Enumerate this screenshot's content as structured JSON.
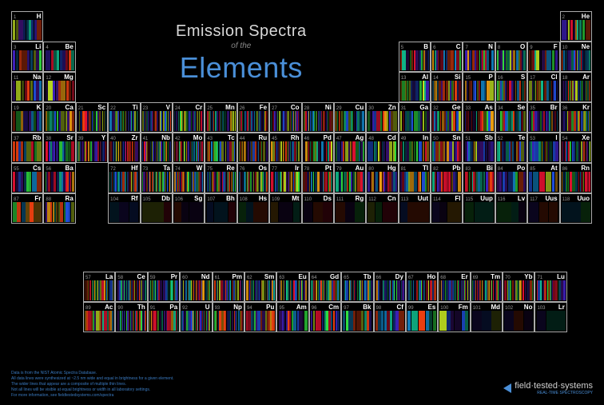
{
  "title": {
    "line1": "Emission Spectra",
    "of": "of the",
    "line2": "Elements",
    "line1_color": "#d8d8d8",
    "line2_color": "#4a8fd8"
  },
  "background_color": "#000000",
  "cell": {
    "border_color": "#aaaaaa",
    "width": 40.4,
    "height": 38,
    "num_color": "#999999",
    "num_fontsize": 6,
    "sym_color": "#ffffff",
    "sym_fontsize": 8
  },
  "spectrum_palette": [
    "#3a1070",
    "#4020c0",
    "#2050e0",
    "#1080c0",
    "#10c090",
    "#30e040",
    "#c0e020",
    "#f0a010",
    "#f04010",
    "#e01030"
  ],
  "layout": {
    "main_cols": 18,
    "main_rows": 7,
    "fblock_cols": 15,
    "fblock_rows": 2
  },
  "elements": [
    {
      "n": 1,
      "s": "H",
      "r": 0,
      "c": 0,
      "d": 3
    },
    {
      "n": 2,
      "s": "He",
      "r": 0,
      "c": 17,
      "d": 4
    },
    {
      "n": 3,
      "s": "Li",
      "r": 1,
      "c": 0,
      "d": 3
    },
    {
      "n": 4,
      "s": "Be",
      "r": 1,
      "c": 1,
      "d": 3
    },
    {
      "n": 5,
      "s": "B",
      "r": 1,
      "c": 12,
      "d": 4
    },
    {
      "n": 6,
      "s": "C",
      "r": 1,
      "c": 13,
      "d": 4
    },
    {
      "n": 7,
      "s": "N",
      "r": 1,
      "c": 14,
      "d": 5
    },
    {
      "n": 8,
      "s": "O",
      "r": 1,
      "c": 15,
      "d": 5
    },
    {
      "n": 9,
      "s": "F",
      "r": 1,
      "c": 16,
      "d": 4
    },
    {
      "n": 10,
      "s": "Ne",
      "r": 1,
      "c": 17,
      "d": 6
    },
    {
      "n": 11,
      "s": "Na",
      "r": 2,
      "c": 0,
      "d": 3
    },
    {
      "n": 12,
      "s": "Mg",
      "r": 2,
      "c": 1,
      "d": 3
    },
    {
      "n": 13,
      "s": "Al",
      "r": 2,
      "c": 12,
      "d": 4
    },
    {
      "n": 14,
      "s": "Si",
      "r": 2,
      "c": 13,
      "d": 5
    },
    {
      "n": 15,
      "s": "P",
      "r": 2,
      "c": 14,
      "d": 4
    },
    {
      "n": 16,
      "s": "S",
      "r": 2,
      "c": 15,
      "d": 5
    },
    {
      "n": 17,
      "s": "Cl",
      "r": 2,
      "c": 16,
      "d": 5
    },
    {
      "n": 18,
      "s": "Ar",
      "r": 2,
      "c": 17,
      "d": 6
    },
    {
      "n": 19,
      "s": "K",
      "r": 3,
      "c": 0,
      "d": 3
    },
    {
      "n": 20,
      "s": "Ca",
      "r": 3,
      "c": 1,
      "d": 4
    },
    {
      "n": 21,
      "s": "Sc",
      "r": 3,
      "c": 2,
      "d": 6
    },
    {
      "n": 22,
      "s": "Ti",
      "r": 3,
      "c": 3,
      "d": 7
    },
    {
      "n": 23,
      "s": "V",
      "r": 3,
      "c": 4,
      "d": 8
    },
    {
      "n": 24,
      "s": "Cr",
      "r": 3,
      "c": 5,
      "d": 7
    },
    {
      "n": 25,
      "s": "Mn",
      "r": 3,
      "c": 6,
      "d": 7
    },
    {
      "n": 26,
      "s": "Fe",
      "r": 3,
      "c": 7,
      "d": 8
    },
    {
      "n": 27,
      "s": "Co",
      "r": 3,
      "c": 8,
      "d": 7
    },
    {
      "n": 28,
      "s": "Ni",
      "r": 3,
      "c": 9,
      "d": 7
    },
    {
      "n": 29,
      "s": "Cu",
      "r": 3,
      "c": 10,
      "d": 5
    },
    {
      "n": 30,
      "s": "Zn",
      "r": 3,
      "c": 11,
      "d": 4
    },
    {
      "n": 31,
      "s": "Ga",
      "r": 3,
      "c": 12,
      "d": 4
    },
    {
      "n": 32,
      "s": "Ge",
      "r": 3,
      "c": 13,
      "d": 5
    },
    {
      "n": 33,
      "s": "As",
      "r": 3,
      "c": 14,
      "d": 5
    },
    {
      "n": 34,
      "s": "Se",
      "r": 3,
      "c": 15,
      "d": 5
    },
    {
      "n": 35,
      "s": "Br",
      "r": 3,
      "c": 16,
      "d": 5
    },
    {
      "n": 36,
      "s": "Kr",
      "r": 3,
      "c": 17,
      "d": 6
    },
    {
      "n": 37,
      "s": "Rb",
      "r": 4,
      "c": 0,
      "d": 3
    },
    {
      "n": 38,
      "s": "Sr",
      "r": 4,
      "c": 1,
      "d": 4
    },
    {
      "n": 39,
      "s": "Y",
      "r": 4,
      "c": 2,
      "d": 6
    },
    {
      "n": 40,
      "s": "Zr",
      "r": 4,
      "c": 3,
      "d": 7
    },
    {
      "n": 41,
      "s": "Nb",
      "r": 4,
      "c": 4,
      "d": 8
    },
    {
      "n": 42,
      "s": "Mo",
      "r": 4,
      "c": 5,
      "d": 8
    },
    {
      "n": 43,
      "s": "Tc",
      "r": 4,
      "c": 6,
      "d": 6
    },
    {
      "n": 44,
      "s": "Ru",
      "r": 4,
      "c": 7,
      "d": 7
    },
    {
      "n": 45,
      "s": "Rh",
      "r": 4,
      "c": 8,
      "d": 6
    },
    {
      "n": 46,
      "s": "Pd",
      "r": 4,
      "c": 9,
      "d": 5
    },
    {
      "n": 47,
      "s": "Ag",
      "r": 4,
      "c": 10,
      "d": 4
    },
    {
      "n": 48,
      "s": "Cd",
      "r": 4,
      "c": 11,
      "d": 4
    },
    {
      "n": 49,
      "s": "In",
      "r": 4,
      "c": 12,
      "d": 4
    },
    {
      "n": 50,
      "s": "Sn",
      "r": 4,
      "c": 13,
      "d": 5
    },
    {
      "n": 51,
      "s": "Sb",
      "r": 4,
      "c": 14,
      "d": 5
    },
    {
      "n": 52,
      "s": "Te",
      "r": 4,
      "c": 15,
      "d": 5
    },
    {
      "n": 53,
      "s": "I",
      "r": 4,
      "c": 16,
      "d": 5
    },
    {
      "n": 54,
      "s": "Xe",
      "r": 4,
      "c": 17,
      "d": 7
    },
    {
      "n": 55,
      "s": "Cs",
      "r": 5,
      "c": 0,
      "d": 3
    },
    {
      "n": 56,
      "s": "Ba",
      "r": 5,
      "c": 1,
      "d": 5
    },
    {
      "n": 72,
      "s": "Hf",
      "r": 5,
      "c": 3,
      "d": 7
    },
    {
      "n": 73,
      "s": "Ta",
      "r": 5,
      "c": 4,
      "d": 8
    },
    {
      "n": 74,
      "s": "W",
      "r": 5,
      "c": 5,
      "d": 8
    },
    {
      "n": 75,
      "s": "Re",
      "r": 5,
      "c": 6,
      "d": 7
    },
    {
      "n": 76,
      "s": "Os",
      "r": 5,
      "c": 7,
      "d": 7
    },
    {
      "n": 77,
      "s": "Ir",
      "r": 5,
      "c": 8,
      "d": 6
    },
    {
      "n": 78,
      "s": "Pt",
      "r": 5,
      "c": 9,
      "d": 5
    },
    {
      "n": 79,
      "s": "Au",
      "r": 5,
      "c": 10,
      "d": 4
    },
    {
      "n": 80,
      "s": "Hg",
      "r": 5,
      "c": 11,
      "d": 5
    },
    {
      "n": 81,
      "s": "Tl",
      "r": 5,
      "c": 12,
      "d": 4
    },
    {
      "n": 82,
      "s": "Pb",
      "r": 5,
      "c": 13,
      "d": 4
    },
    {
      "n": 83,
      "s": "Bi",
      "r": 5,
      "c": 14,
      "d": 5
    },
    {
      "n": 84,
      "s": "Po",
      "r": 5,
      "c": 15,
      "d": 3
    },
    {
      "n": 85,
      "s": "At",
      "r": 5,
      "c": 16,
      "d": 2
    },
    {
      "n": 86,
      "s": "Rn",
      "r": 5,
      "c": 17,
      "d": 5
    },
    {
      "n": 87,
      "s": "Fr",
      "r": 6,
      "c": 0,
      "d": 2
    },
    {
      "n": 88,
      "s": "Ra",
      "r": 6,
      "c": 1,
      "d": 4
    },
    {
      "n": 104,
      "s": "Rf",
      "r": 6,
      "c": 3,
      "d": 1
    },
    {
      "n": 105,
      "s": "Db",
      "r": 6,
      "c": 4,
      "d": 1
    },
    {
      "n": 106,
      "s": "Sg",
      "r": 6,
      "c": 5,
      "d": 1
    },
    {
      "n": 107,
      "s": "Bh",
      "r": 6,
      "c": 6,
      "d": 1
    },
    {
      "n": 108,
      "s": "Hs",
      "r": 6,
      "c": 7,
      "d": 1
    },
    {
      "n": 109,
      "s": "Mt",
      "r": 6,
      "c": 8,
      "d": 1
    },
    {
      "n": 110,
      "s": "Ds",
      "r": 6,
      "c": 9,
      "d": 1
    },
    {
      "n": 111,
      "s": "Rg",
      "r": 6,
      "c": 10,
      "d": 1
    },
    {
      "n": 112,
      "s": "Cn",
      "r": 6,
      "c": 11,
      "d": 1
    },
    {
      "n": 113,
      "s": "Uut",
      "r": 6,
      "c": 12,
      "d": 1
    },
    {
      "n": 114,
      "s": "Fl",
      "r": 6,
      "c": 13,
      "d": 1
    },
    {
      "n": 115,
      "s": "Uup",
      "r": 6,
      "c": 14,
      "d": 1
    },
    {
      "n": 116,
      "s": "Lv",
      "r": 6,
      "c": 15,
      "d": 1
    },
    {
      "n": 117,
      "s": "Uus",
      "r": 6,
      "c": 16,
      "d": 1
    },
    {
      "n": 118,
      "s": "Uuo",
      "r": 6,
      "c": 17,
      "d": 1
    }
  ],
  "fblock": [
    {
      "n": 57,
      "s": "La",
      "r": 0,
      "c": 0,
      "d": 7
    },
    {
      "n": 58,
      "s": "Ce",
      "r": 0,
      "c": 1,
      "d": 8
    },
    {
      "n": 59,
      "s": "Pr",
      "r": 0,
      "c": 2,
      "d": 8
    },
    {
      "n": 60,
      "s": "Nd",
      "r": 0,
      "c": 3,
      "d": 8
    },
    {
      "n": 61,
      "s": "Pm",
      "r": 0,
      "c": 4,
      "d": 6
    },
    {
      "n": 62,
      "s": "Sm",
      "r": 0,
      "c": 5,
      "d": 8
    },
    {
      "n": 63,
      "s": "Eu",
      "r": 0,
      "c": 6,
      "d": 7
    },
    {
      "n": 64,
      "s": "Gd",
      "r": 0,
      "c": 7,
      "d": 8
    },
    {
      "n": 65,
      "s": "Tb",
      "r": 0,
      "c": 8,
      "d": 8
    },
    {
      "n": 66,
      "s": "Dy",
      "r": 0,
      "c": 9,
      "d": 8
    },
    {
      "n": 67,
      "s": "Ho",
      "r": 0,
      "c": 10,
      "d": 8
    },
    {
      "n": 68,
      "s": "Er",
      "r": 0,
      "c": 11,
      "d": 8
    },
    {
      "n": 69,
      "s": "Tm",
      "r": 0,
      "c": 12,
      "d": 7
    },
    {
      "n": 70,
      "s": "Yb",
      "r": 0,
      "c": 13,
      "d": 6
    },
    {
      "n": 71,
      "s": "Lu",
      "r": 0,
      "c": 14,
      "d": 6
    },
    {
      "n": 89,
      "s": "Ac",
      "r": 1,
      "c": 0,
      "d": 5
    },
    {
      "n": 90,
      "s": "Th",
      "r": 1,
      "c": 1,
      "d": 7
    },
    {
      "n": 91,
      "s": "Pa",
      "r": 1,
      "c": 2,
      "d": 6
    },
    {
      "n": 92,
      "s": "U",
      "r": 1,
      "c": 3,
      "d": 8
    },
    {
      "n": 93,
      "s": "Np",
      "r": 1,
      "c": 4,
      "d": 6
    },
    {
      "n": 94,
      "s": "Pu",
      "r": 1,
      "c": 5,
      "d": 5
    },
    {
      "n": 95,
      "s": "Am",
      "r": 1,
      "c": 6,
      "d": 4
    },
    {
      "n": 96,
      "s": "Cm",
      "r": 1,
      "c": 7,
      "d": 4
    },
    {
      "n": 97,
      "s": "Bk",
      "r": 1,
      "c": 8,
      "d": 3
    },
    {
      "n": 98,
      "s": "Cf",
      "r": 1,
      "c": 9,
      "d": 3
    },
    {
      "n": 99,
      "s": "Es",
      "r": 1,
      "c": 10,
      "d": 2
    },
    {
      "n": 100,
      "s": "Fm",
      "r": 1,
      "c": 11,
      "d": 2
    },
    {
      "n": 101,
      "s": "Md",
      "r": 1,
      "c": 12,
      "d": 1
    },
    {
      "n": 102,
      "s": "No",
      "r": 1,
      "c": 13,
      "d": 1
    },
    {
      "n": 103,
      "s": "Lr",
      "r": 1,
      "c": 14,
      "d": 1
    }
  ],
  "attribution": {
    "lines": [
      "Data is from the NIST Atomic Spectra Database.",
      "All data lines were synthesized at ~2.5 nm wide and equal in brightness for a given element.",
      "The wider lines that appear are a composite of multiple thin lines.",
      "Not all lines will be visible at equal brightness or width in all laboratory settings.",
      "For more information, see fieldtestedsystems.com/spectra"
    ]
  },
  "logo": {
    "text": "field·tested·systems",
    "subtitle": "REAL-TIME SPECTROSCOPY",
    "triangle_color": "#4a8fd8"
  }
}
